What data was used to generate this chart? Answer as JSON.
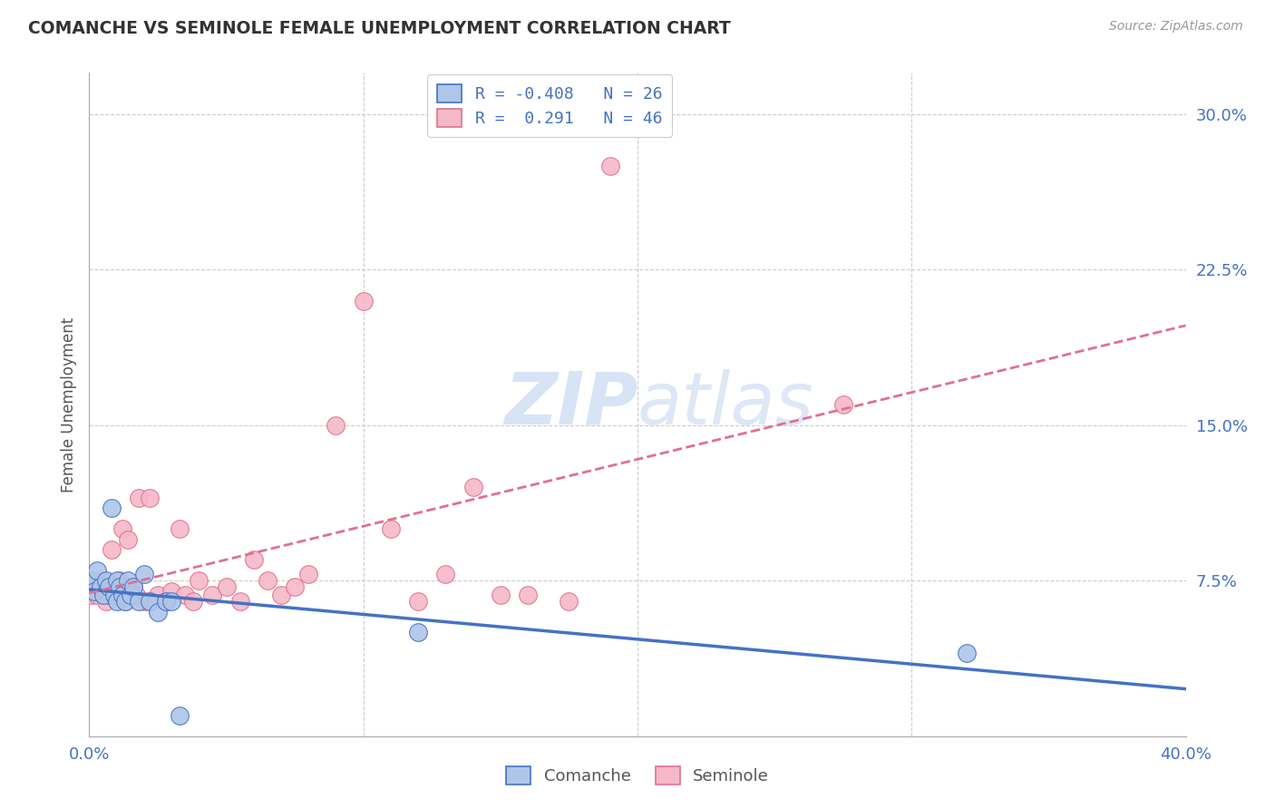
{
  "title": "COMANCHE VS SEMINOLE FEMALE UNEMPLOYMENT CORRELATION CHART",
  "source": "Source: ZipAtlas.com",
  "ylabel_label": "Female Unemployment",
  "xlim": [
    0.0,
    0.4
  ],
  "ylim": [
    0.0,
    0.32
  ],
  "xtick_vals": [
    0.0,
    0.1,
    0.2,
    0.3,
    0.4
  ],
  "xtick_labels": [
    "0.0%",
    "",
    "",
    "",
    "40.0%"
  ],
  "ytick_right_vals": [
    0.075,
    0.15,
    0.225,
    0.3
  ],
  "ytick_right_labels": [
    "7.5%",
    "15.0%",
    "22.5%",
    "30.0%"
  ],
  "comanche_fill": "#aec6e8",
  "seminole_fill": "#f5b8c8",
  "comanche_edge": "#4472c4",
  "seminole_edge": "#e07090",
  "comanche_line_color": "#4472c4",
  "seminole_line_color": "#e07090",
  "grid_color": "#cccccc",
  "watermark_color": "#d6e4f5",
  "legend_R_comanche": "R = -0.408",
  "legend_N_comanche": "N = 26",
  "legend_R_seminole": "R =  0.291",
  "legend_N_seminole": "N = 46",
  "comanche_x": [
    0.001,
    0.002,
    0.003,
    0.004,
    0.005,
    0.006,
    0.007,
    0.008,
    0.009,
    0.01,
    0.01,
    0.011,
    0.012,
    0.013,
    0.014,
    0.015,
    0.016,
    0.018,
    0.02,
    0.022,
    0.025,
    0.028,
    0.03,
    0.033,
    0.12,
    0.32
  ],
  "comanche_y": [
    0.075,
    0.07,
    0.08,
    0.072,
    0.068,
    0.075,
    0.072,
    0.11,
    0.068,
    0.075,
    0.065,
    0.072,
    0.068,
    0.065,
    0.075,
    0.068,
    0.072,
    0.065,
    0.078,
    0.065,
    0.06,
    0.065,
    0.065,
    0.01,
    0.05,
    0.04
  ],
  "seminole_x": [
    0.001,
    0.002,
    0.003,
    0.004,
    0.005,
    0.006,
    0.007,
    0.008,
    0.009,
    0.01,
    0.011,
    0.012,
    0.013,
    0.014,
    0.015,
    0.016,
    0.017,
    0.018,
    0.02,
    0.022,
    0.025,
    0.028,
    0.03,
    0.033,
    0.035,
    0.038,
    0.04,
    0.045,
    0.05,
    0.055,
    0.06,
    0.065,
    0.07,
    0.075,
    0.08,
    0.09,
    0.1,
    0.11,
    0.12,
    0.13,
    0.14,
    0.15,
    0.16,
    0.175,
    0.19,
    0.275
  ],
  "seminole_y": [
    0.068,
    0.072,
    0.068,
    0.072,
    0.075,
    0.065,
    0.068,
    0.09,
    0.072,
    0.068,
    0.075,
    0.1,
    0.065,
    0.095,
    0.068,
    0.072,
    0.068,
    0.115,
    0.065,
    0.115,
    0.068,
    0.065,
    0.07,
    0.1,
    0.068,
    0.065,
    0.075,
    0.068,
    0.072,
    0.065,
    0.085,
    0.075,
    0.068,
    0.072,
    0.078,
    0.15,
    0.21,
    0.1,
    0.065,
    0.078,
    0.12,
    0.068,
    0.068,
    0.065,
    0.275,
    0.16
  ]
}
